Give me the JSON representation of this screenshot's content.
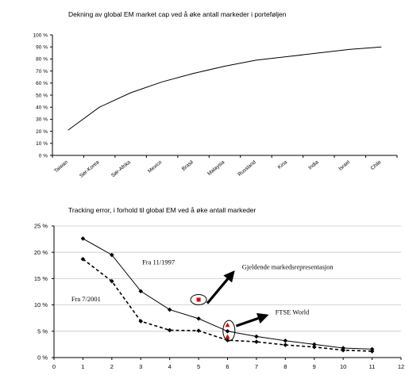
{
  "chart_data": [
    {
      "type": "line",
      "title": "Dekning av global EM market cap ved å øke antall markeder i porteføljen",
      "categories": [
        "Taiwan",
        "Sør-Korea",
        "Sør-Afrika",
        "Mexico",
        "Brasil",
        "Malaysia",
        "Russland",
        "Kina",
        "India",
        "Israel",
        "Chile"
      ],
      "values": [
        21,
        40,
        52,
        61,
        68,
        74,
        79,
        82,
        85,
        88,
        90
      ],
      "y_ticks": [
        "0 %",
        "10 %",
        "20 %",
        "30 %",
        "40 %",
        "50 %",
        "60 %",
        "70 %",
        "80 %",
        "90 %",
        "100 %"
      ],
      "ylim": [
        0,
        100
      ],
      "grid": false
    },
    {
      "type": "line",
      "title": "Tracking error, i forhold til global EM ved å øke antall markeder",
      "xlim": [
        0,
        12
      ],
      "ylim": [
        0,
        25
      ],
      "x_ticks": [
        "0",
        "1",
        "2",
        "3",
        "4",
        "5",
        "6",
        "7",
        "8",
        "9",
        "10",
        "11",
        "12"
      ],
      "y_ticks": [
        "0 %",
        "5 %",
        "10 %",
        "15 %",
        "20 %",
        "25 %"
      ],
      "grid": true,
      "series": [
        {
          "name": "Fra 11/1997",
          "x": [
            1,
            2,
            3,
            4,
            5,
            6,
            7,
            8,
            9,
            10,
            11
          ],
          "values": [
            22.6,
            19.5,
            12.6,
            9.1,
            7.4,
            5.0,
            4.0,
            3.2,
            2.5,
            1.8,
            1.6
          ],
          "style": "solid"
        },
        {
          "name": "Fra 7/2001",
          "x": [
            1,
            2,
            3,
            4,
            5,
            6,
            7,
            8,
            9,
            10,
            11
          ],
          "values": [
            18.7,
            14.5,
            6.9,
            5.2,
            5.1,
            3.3,
            3.0,
            2.4,
            2.0,
            1.4,
            1.2
          ],
          "style": "dashed"
        }
      ],
      "markers": [
        {
          "x": 5,
          "y": 11.0,
          "color": "#dd0000",
          "shape": "square"
        },
        {
          "x": 6,
          "y": 6.2,
          "color": "#dd0000",
          "shape": "triangle"
        },
        {
          "x": 6,
          "y": 4.0,
          "color": "#dd0000",
          "shape": "triangle"
        }
      ],
      "annotations": [
        {
          "text": "Gjeldende markedsrepresentasjon"
        },
        {
          "text": "FTSE World"
        }
      ]
    }
  ]
}
